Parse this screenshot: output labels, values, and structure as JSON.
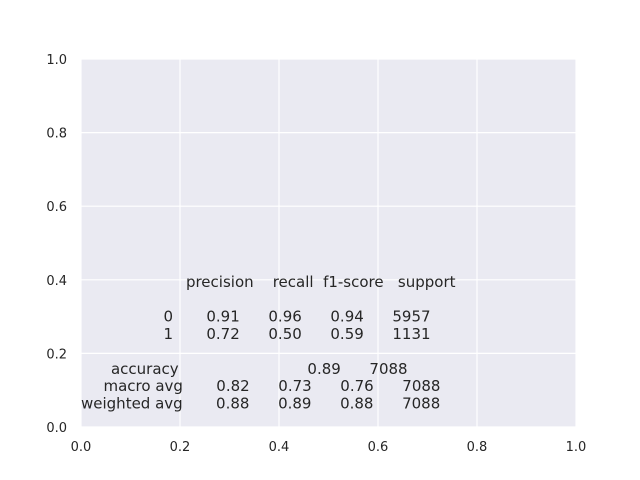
{
  "chart_data": {
    "type": "table",
    "title": "",
    "xlabel": "",
    "ylabel": "",
    "xlim": [
      0,
      1
    ],
    "ylim": [
      0,
      1
    ],
    "grid": true,
    "x_ticks": [
      "0.0",
      "0.2",
      "0.4",
      "0.6",
      "0.8",
      "1.0"
    ],
    "y_ticks": [
      "0.0",
      "0.2",
      "0.4",
      "0.6",
      "0.8",
      "1.0"
    ],
    "colors": {
      "plot_background": "#eaeaf2",
      "grid": "#ffffff",
      "text": "#262626"
    },
    "report_lines": [
      "              precision    recall  f1-score   support",
      "",
      "           0       0.91      0.96      0.94      5957",
      "           1       0.72      0.50      0.59      1131",
      "",
      "    accuracy                           0.89      7088",
      "   macro avg       0.82      0.73      0.76      7088",
      "weighted avg       0.88      0.89      0.88      7088"
    ],
    "report_columns": [
      "precision",
      "recall",
      "f1-score",
      "support"
    ],
    "report_rows": [
      {
        "label": "0",
        "precision": 0.91,
        "recall": 0.96,
        "f1_score": 0.94,
        "support": 5957
      },
      {
        "label": "1",
        "precision": 0.72,
        "recall": 0.5,
        "f1_score": 0.59,
        "support": 1131
      },
      {
        "label": "accuracy",
        "precision": null,
        "recall": null,
        "f1_score": 0.89,
        "support": 7088
      },
      {
        "label": "macro avg",
        "precision": 0.82,
        "recall": 0.73,
        "f1_score": 0.76,
        "support": 7088
      },
      {
        "label": "weighted avg",
        "precision": 0.88,
        "recall": 0.89,
        "f1_score": 0.88,
        "support": 7088
      }
    ]
  }
}
